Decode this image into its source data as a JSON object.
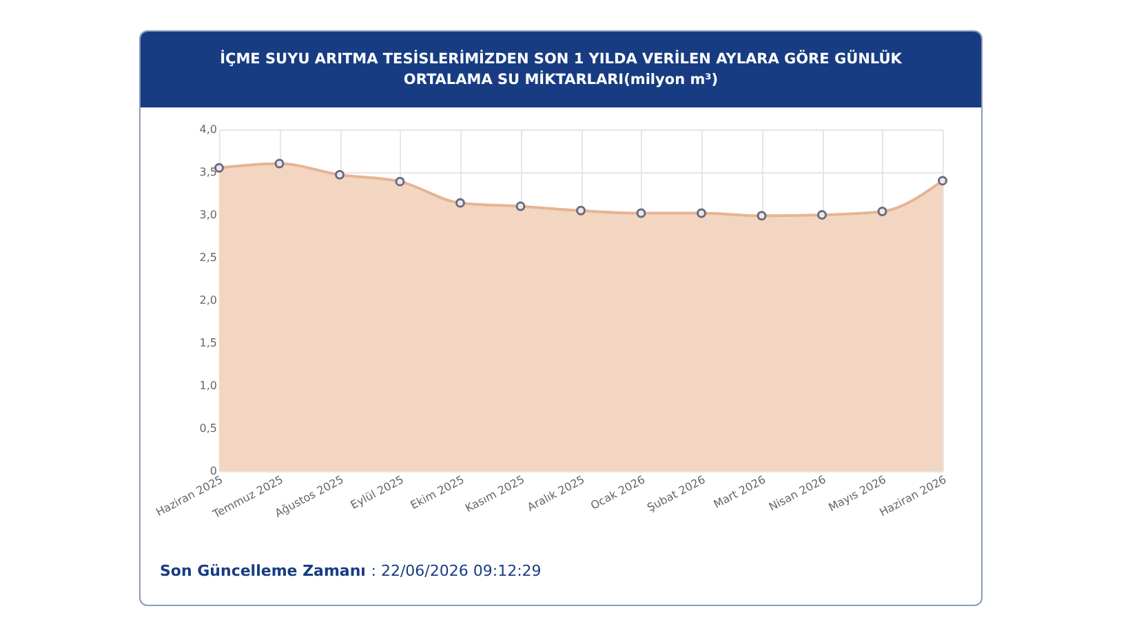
{
  "chart_data": {
    "type": "area",
    "title": "İÇME SUYU ARITMA TESİSLERİMİZDEN SON 1 YILDA VERİLEN AYLARA GÖRE GÜNLÜK ORTALAMA SU MİKTARLARI(milyon m³)",
    "categories": [
      "Haziran 2025",
      "Temmuz 2025",
      "Ağustos 2025",
      "Eylül 2025",
      "Ekim 2025",
      "Kasım 2025",
      "Aralık 2025",
      "Ocak 2026",
      "Şubat 2026",
      "Mart 2026",
      "Nisan 2026",
      "Mayıs 2026",
      "Haziran 2026"
    ],
    "series": [
      {
        "color": "#f3d6c1",
        "values": [
          3.55,
          3.6,
          3.47,
          3.39,
          3.14,
          3.1,
          3.05,
          3.02,
          3.02,
          2.99,
          3.0,
          3.04,
          3.4
        ]
      }
    ],
    "ylim": [
      0,
      4
    ],
    "yticks": [
      0,
      {
        "value": 0.5,
        "label": "0,5"
      },
      {
        "value": 1,
        "label": "1,0"
      },
      {
        "value": 1.5,
        "label": "1,5"
      },
      {
        "value": 2,
        "label": "2,0"
      },
      {
        "value": 2.5,
        "label": "2,5"
      },
      {
        "value": 3,
        "label": "3,0"
      },
      {
        "value": 3.5,
        "label": "3,5"
      },
      {
        "value": 4,
        "label": "4,0"
      }
    ],
    "grid": true,
    "marker": "circle",
    "line_style": "solid",
    "annotations": [
      "Son Güncelleme Zamanı : 22/06/2026 09:12:29"
    ]
  }
}
